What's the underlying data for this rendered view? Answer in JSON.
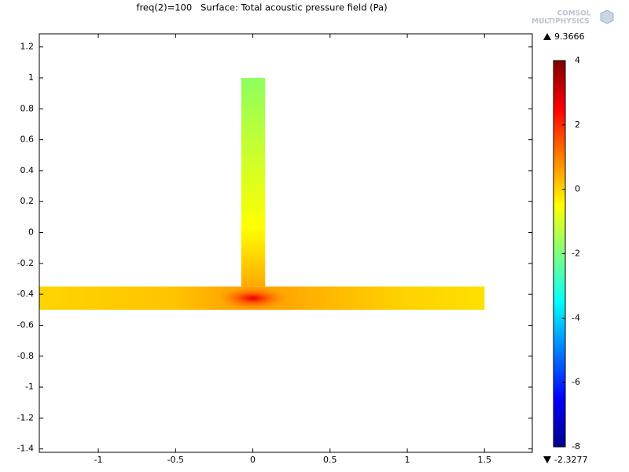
{
  "chart_data": {
    "type": "surface",
    "title": "freq(2)=100   Surface: Total acoustic pressure field (Pa)",
    "logo": [
      "COMSOL",
      "MULTIPHYSICS"
    ],
    "xlim": [
      -1.382,
      1.809
    ],
    "ylim": [
      -1.422,
      1.285
    ],
    "xticks": [
      -1,
      -0.5,
      0,
      0.5,
      1,
      1.5
    ],
    "yticks": [
      1.2,
      1,
      0.8,
      0.6,
      0.4,
      0.2,
      0,
      -0.2,
      -0.4,
      -0.6,
      -0.8,
      -1,
      -1.2,
      -1.4
    ],
    "domains": [
      {
        "xlim": [
          -1.382,
          1.5
        ],
        "ylim": [
          -0.5,
          -0.35
        ]
      },
      {
        "xlim": [
          -0.075,
          0.08
        ],
        "ylim": [
          -0.35,
          1
        ]
      }
    ],
    "colorbar": {
      "clim": [
        -8,
        4
      ],
      "ticks": [
        4,
        2,
        0,
        -2,
        -4,
        -6,
        -8
      ]
    },
    "max": 9.3666,
    "min": -2.3277
  }
}
